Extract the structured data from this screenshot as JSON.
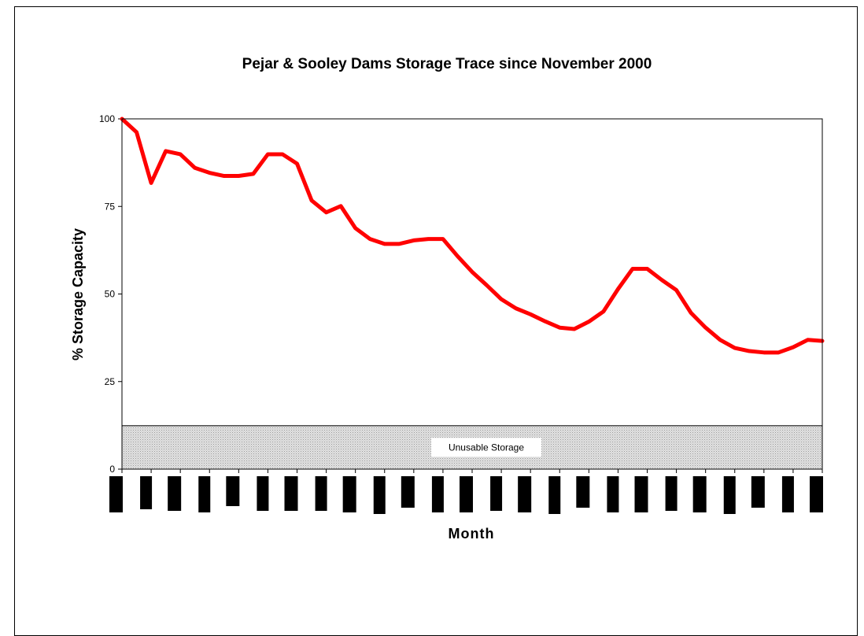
{
  "chart_data": {
    "type": "line",
    "title": "Pejar & Sooley Dams Storage Trace since November 2000",
    "xlabel": "Month",
    "ylabel": "% Storage Capacity",
    "ylim": [
      0,
      100
    ],
    "yticks": [
      "0",
      "25",
      "50",
      "75",
      "100"
    ],
    "grid": false,
    "legend": "none",
    "series_color": "#ff0000",
    "unusable_storage": {
      "label": "Unusable Storage",
      "upper": 12.4,
      "color": "#d6d6d6"
    },
    "x_tick_labels_redacted": true,
    "series": [
      {
        "values": [
          100,
          96.2,
          81.7,
          90.8,
          89.9,
          86.0,
          84.6,
          83.7,
          83.7,
          84.3,
          89.9,
          89.9,
          87.2,
          76.7,
          73.3,
          75.1,
          68.8,
          65.7,
          64.3,
          64.3,
          65.3,
          65.7,
          65.7,
          60.8,
          56.3,
          52.5,
          48.5,
          45.9,
          44.2,
          42.2,
          40.4,
          40.0,
          42.1,
          45.0,
          51.4,
          57.2,
          57.2,
          54.0,
          51.1,
          44.6,
          40.4,
          36.9,
          34.6,
          33.7,
          33.3,
          33.3,
          34.8,
          36.9,
          36.6
        ]
      }
    ]
  }
}
